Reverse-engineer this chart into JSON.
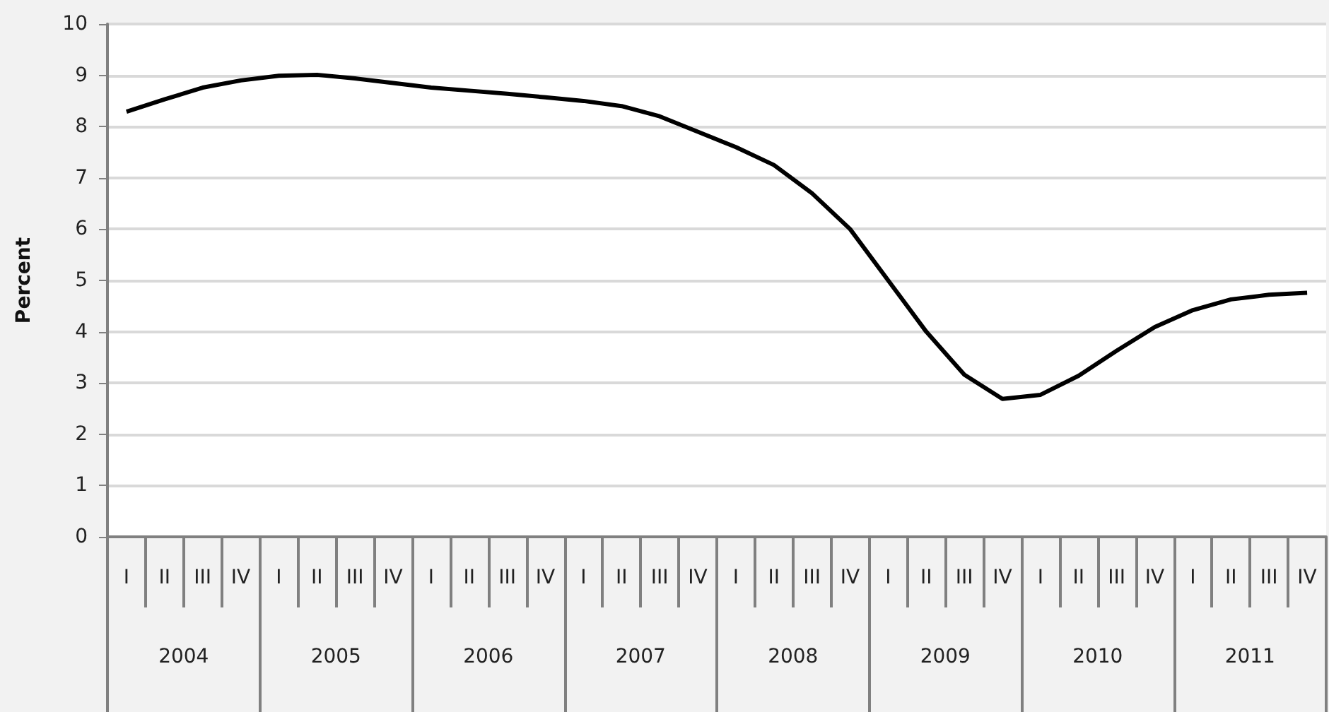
{
  "chart_data": {
    "type": "line",
    "ylabel": "Percent",
    "categories": [
      "I",
      "II",
      "III",
      "IV",
      "I",
      "II",
      "III",
      "IV",
      "I",
      "II",
      "III",
      "IV",
      "I",
      "II",
      "III",
      "IV",
      "I",
      "II",
      "III",
      "IV",
      "I",
      "II",
      "III",
      "IV",
      "I",
      "II",
      "III",
      "IV",
      "I",
      "II",
      "III",
      "IV"
    ],
    "annotations": [
      "2004",
      "2005",
      "2006",
      "2007",
      "2008",
      "2009",
      "2010",
      "2011"
    ],
    "series": [
      {
        "color": "#000000",
        "values": [
          8.29,
          8.53,
          8.76,
          8.9,
          8.99,
          9.01,
          8.94,
          8.85,
          8.76,
          8.7,
          8.64,
          8.57,
          8.5,
          8.4,
          8.2,
          7.9,
          7.6,
          7.25,
          6.7,
          6.0,
          5.0,
          4.0,
          3.16,
          2.69,
          2.77,
          3.14,
          3.63,
          4.09,
          4.42,
          4.63,
          4.72,
          4.76
        ]
      }
    ],
    "ylim": [
      0,
      10
    ],
    "yticks": [
      0,
      1,
      2,
      3,
      4,
      5,
      6,
      7,
      8,
      9,
      10
    ],
    "grid": "y"
  }
}
